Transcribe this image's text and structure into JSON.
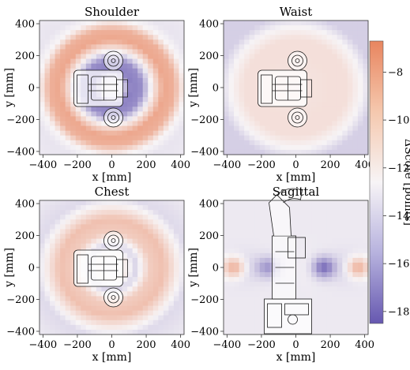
{
  "chart_data": [
    {
      "type": "heatmap",
      "title": "Shoulder",
      "xlabel": "x [mm]",
      "ylabel": "y [mm]",
      "xlim": [
        -420,
        420
      ],
      "ylim": [
        -420,
        420
      ],
      "xticks": [
        -400,
        -200,
        0,
        200,
        400
      ],
      "yticks": [
        -400,
        -200,
        0,
        200,
        400
      ],
      "pattern": "concentric rings around (0, 0)",
      "radial_profile_mm": [
        [
          0,
          -13.0
        ],
        [
          60,
          -13.5
        ],
        [
          110,
          -17.0
        ],
        [
          170,
          -16.5
        ],
        [
          230,
          -12.5
        ],
        [
          300,
          -8.5
        ],
        [
          360,
          -9.0
        ],
        [
          420,
          -12.5
        ],
        [
          480,
          -13.2
        ],
        [
          600,
          -13.0
        ]
      ],
      "overlay": "robot top-view outline (centered near x=0, y=0)"
    },
    {
      "type": "heatmap",
      "title": "Waist",
      "xlabel": "x [mm]",
      "ylabel": "y [mm]",
      "xlim": [
        -420,
        420
      ],
      "ylim": [
        -420,
        420
      ],
      "xticks": [
        -400,
        -200,
        0,
        200,
        400
      ],
      "yticks": [
        -400,
        -200,
        0,
        200,
        400
      ],
      "pattern": "nearly uniform light field, faint bluish corners",
      "radial_profile_mm": [
        [
          0,
          -11.8
        ],
        [
          200,
          -11.5
        ],
        [
          300,
          -11.5
        ],
        [
          380,
          -12.6
        ],
        [
          450,
          -14.0
        ],
        [
          600,
          -14.0
        ]
      ],
      "overlay": "robot top-view outline (centered near x=0, y=0)"
    },
    {
      "type": "heatmap",
      "title": "Chest",
      "xlabel": "x [mm]",
      "ylabel": "y [mm]",
      "xlim": [
        -420,
        420
      ],
      "ylim": [
        -420,
        420
      ],
      "xticks": [
        -400,
        -200,
        0,
        200,
        400
      ],
      "yticks": [
        -400,
        -200,
        0,
        200,
        400
      ],
      "pattern": "concentric rings around (0, 0)",
      "radial_profile_mm": [
        [
          0,
          -13.0
        ],
        [
          90,
          -12.2
        ],
        [
          140,
          -13.8
        ],
        [
          220,
          -10.5
        ],
        [
          300,
          -9.8
        ],
        [
          380,
          -12.2
        ],
        [
          440,
          -13.6
        ],
        [
          600,
          -13.0
        ]
      ],
      "overlay": "robot top-view outline (centered near x=0, y=0)"
    },
    {
      "type": "heatmap",
      "title": "Sagittal",
      "xlabel": "x [mm]",
      "ylabel": "y [mm]",
      "xlim": [
        -420,
        420
      ],
      "ylim": [
        -420,
        420
      ],
      "xticks": [
        -400,
        -200,
        0,
        200,
        400
      ],
      "yticks": [
        -400,
        -200,
        0,
        200,
        400
      ],
      "pattern": "horizontal band at y≈0 with orange lobes at x≈±360 and a blue spot at x≈160",
      "features": [
        {
          "x": -360,
          "y": 0,
          "value": -8.5
        },
        {
          "x": 360,
          "y": 0,
          "value": -8.5
        },
        {
          "x": 160,
          "y": 0,
          "value": -17.5
        },
        {
          "x": -160,
          "y": 0,
          "value": -16.0
        }
      ],
      "overlay": "robot side-view outline (arm raised above x≈-50)"
    }
  ],
  "colorbar": {
    "label": "ΔScore [points]",
    "range": [
      -18.5,
      -6.7
    ],
    "ticks": [
      -8,
      -10,
      -12,
      -14,
      -16,
      -18
    ],
    "colors": {
      "high": "#e8855f",
      "mid": "#f7f4f6",
      "low": "#6658b0"
    }
  }
}
